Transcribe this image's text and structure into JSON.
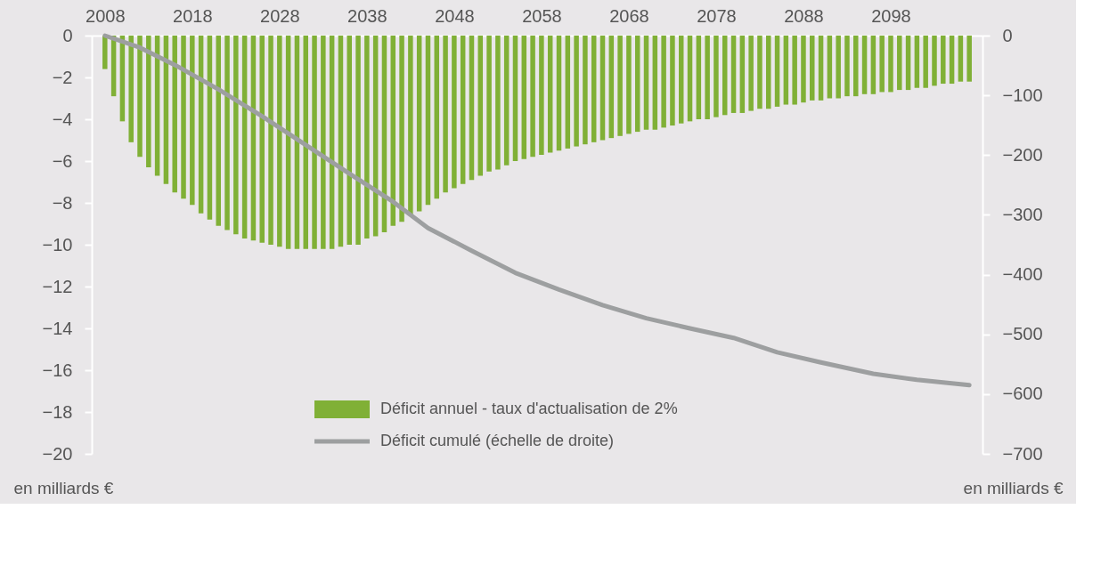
{
  "chart_data": {
    "type": "bar",
    "xlim": [
      2007,
      2108
    ],
    "xticks": [
      2008,
      2018,
      2028,
      2038,
      2048,
      2058,
      2068,
      2078,
      2088,
      2098
    ],
    "ylim": [
      -20,
      0
    ],
    "yticks": [
      0,
      -2,
      -4,
      -6,
      -8,
      -10,
      -12,
      -14,
      -16,
      -18,
      -20
    ],
    "y2lim": [
      -700,
      0
    ],
    "y2ticks": [
      0,
      -100,
      -200,
      -300,
      -400,
      -500,
      -600,
      -700
    ],
    "ylabel": "en milliards €",
    "y2label": "en milliards €",
    "legend": "bottom",
    "grid": false,
    "series": [
      {
        "name": "Déficit annuel - taux d'actualisation de 2%",
        "color": "#80b036",
        "x": [
          2008,
          2009,
          2010,
          2011,
          2012,
          2013,
          2014,
          2015,
          2016,
          2017,
          2018,
          2019,
          2020,
          2021,
          2022,
          2023,
          2024,
          2025,
          2026,
          2027,
          2028,
          2029,
          2030,
          2031,
          2032,
          2033,
          2034,
          2035,
          2036,
          2037,
          2038,
          2039,
          2040,
          2041,
          2042,
          2043,
          2044,
          2045,
          2046,
          2047,
          2048,
          2049,
          2050,
          2051,
          2052,
          2053,
          2054,
          2055,
          2056,
          2057,
          2058,
          2059,
          2060,
          2061,
          2062,
          2063,
          2064,
          2065,
          2066,
          2067,
          2068,
          2069,
          2070,
          2071,
          2072,
          2073,
          2074,
          2075,
          2076,
          2077,
          2078,
          2079,
          2080,
          2081,
          2082,
          2083,
          2084,
          2085,
          2086,
          2087,
          2088,
          2089,
          2090,
          2091,
          2092,
          2093,
          2094,
          2095,
          2096,
          2097,
          2098,
          2099,
          2100,
          2101,
          2102,
          2103,
          2104,
          2105,
          2106,
          2107
        ],
        "values": [
          -1.6,
          -2.9,
          -4.1,
          -5.1,
          -5.8,
          -6.3,
          -6.7,
          -7.1,
          -7.5,
          -7.8,
          -8.1,
          -8.5,
          -8.8,
          -9.1,
          -9.3,
          -9.5,
          -9.7,
          -9.8,
          -9.9,
          -10.0,
          -10.1,
          -10.2,
          -10.2,
          -10.2,
          -10.2,
          -10.2,
          -10.2,
          -10.1,
          -10.0,
          -10.0,
          -9.7,
          -9.6,
          -9.4,
          -9.1,
          -8.9,
          -8.6,
          -8.4,
          -8.1,
          -7.8,
          -7.5,
          -7.3,
          -7.1,
          -6.9,
          -6.7,
          -6.5,
          -6.4,
          -6.2,
          -6.0,
          -5.9,
          -5.8,
          -5.7,
          -5.6,
          -5.5,
          -5.4,
          -5.3,
          -5.2,
          -5.1,
          -5.0,
          -4.9,
          -4.8,
          -4.7,
          -4.6,
          -4.5,
          -4.5,
          -4.4,
          -4.3,
          -4.2,
          -4.1,
          -4.0,
          -4.0,
          -3.9,
          -3.8,
          -3.7,
          -3.7,
          -3.6,
          -3.5,
          -3.5,
          -3.4,
          -3.3,
          -3.3,
          -3.2,
          -3.1,
          -3.1,
          -3.0,
          -3.0,
          -2.9,
          -2.9,
          -2.8,
          -2.8,
          -2.7,
          -2.7,
          -2.6,
          -2.6,
          -2.5,
          -2.5,
          -2.4,
          -2.3,
          -2.3,
          -2.2,
          -2.2
        ]
      },
      {
        "name": "Déficit cumulé (échelle de droite)",
        "type": "line",
        "axis": "y2",
        "color": "#9d9fa0",
        "x": [
          2008,
          2012,
          2016,
          2021,
          2026,
          2031,
          2036,
          2041,
          2045,
          2050,
          2055,
          2060,
          2065,
          2070,
          2075,
          2080,
          2085,
          2090,
          2096,
          2101,
          2107
        ],
        "values": [
          0,
          -20,
          -49,
          -90,
          -135,
          -183,
          -231,
          -278,
          -322,
          -360,
          -397,
          -425,
          -451,
          -473,
          -490,
          -506,
          -530,
          -547,
          -566,
          -576,
          -585
        ]
      }
    ]
  }
}
